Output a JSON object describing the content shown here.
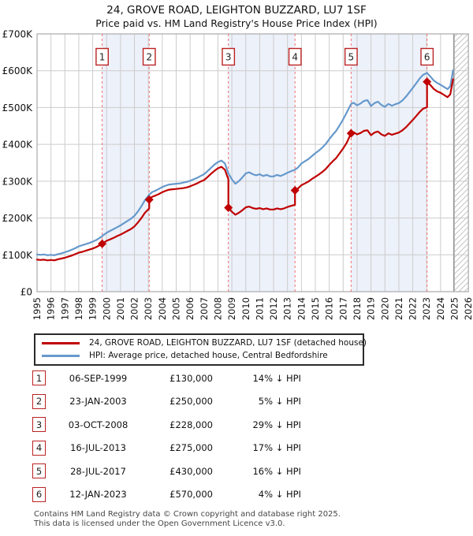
{
  "title": {
    "line1": "24, GROVE ROAD, LEIGHTON BUZZARD, LU7 1SF",
    "line2": "Price paid vs. HM Land Registry's House Price Index (HPI)"
  },
  "colors": {
    "price_line": "#c00000",
    "hpi_line": "#6699cc",
    "event_dash": "#f07070",
    "band_fill": "#edf1fa",
    "grid": "#cccccc",
    "plot_border": "#aaaaaa",
    "hatch_line": "#c4c4c4",
    "hatch_edge": "#999999",
    "event_box_border": "#bb2222",
    "marker_fill": "#c00000",
    "text": "#111111"
  },
  "chart_data": {
    "type": "line",
    "title": "24, GROVE ROAD, LEIGHTON BUZZARD, LU7 1SF",
    "subtitle": "Price paid vs. HM Land Registry's House Price Index (HPI)",
    "ylabel": "",
    "xlabel": "",
    "values_unit": "GBP thousands",
    "x_axis": {
      "min": 1995,
      "max": 2026,
      "ticks": [
        1995,
        1996,
        1997,
        1998,
        1999,
        2000,
        2001,
        2002,
        2003,
        2004,
        2005,
        2006,
        2007,
        2008,
        2009,
        2010,
        2011,
        2012,
        2013,
        2014,
        2015,
        2016,
        2017,
        2018,
        2019,
        2020,
        2021,
        2022,
        2023,
        2024,
        2025,
        2026
      ]
    },
    "y_axis": {
      "min": 0,
      "max": 700,
      "ticks": [
        {
          "v": 0,
          "label": "£0"
        },
        {
          "v": 100,
          "label": "£100K"
        },
        {
          "v": 200,
          "label": "£200K"
        },
        {
          "v": 300,
          "label": "£300K"
        },
        {
          "v": 400,
          "label": "£400K"
        },
        {
          "v": 500,
          "label": "£500K"
        },
        {
          "v": 600,
          "label": "£600K"
        },
        {
          "v": 700,
          "label": "£700K"
        }
      ]
    },
    "grid": true,
    "future_hatch_start": 2024.95,
    "ownership_bands": [
      [
        1999.68,
        2003.06
      ],
      [
        2008.75,
        2013.54
      ],
      [
        2017.57,
        2023.03
      ]
    ],
    "events": [
      {
        "n": "1",
        "x": 1999.68,
        "price_k": 130
      },
      {
        "n": "2",
        "x": 2003.06,
        "price_k": 250
      },
      {
        "n": "3",
        "x": 2008.75,
        "price_k": 228
      },
      {
        "n": "4",
        "x": 2013.54,
        "price_k": 275
      },
      {
        "n": "5",
        "x": 2017.57,
        "price_k": 430
      },
      {
        "n": "6",
        "x": 2023.03,
        "price_k": 570
      }
    ],
    "series": [
      {
        "name": "HPI: Average price, detached house, Central Bedfordshire",
        "color_key": "hpi_line",
        "points": [
          [
            1995.0,
            101
          ],
          [
            1995.25,
            100
          ],
          [
            1995.5,
            101
          ],
          [
            1995.75,
            99
          ],
          [
            1996.0,
            100
          ],
          [
            1996.25,
            99
          ],
          [
            1996.5,
            102
          ],
          [
            1996.75,
            104
          ],
          [
            1997.0,
            107
          ],
          [
            1997.25,
            110
          ],
          [
            1997.5,
            114
          ],
          [
            1997.75,
            118
          ],
          [
            1998.0,
            123
          ],
          [
            1998.25,
            126
          ],
          [
            1998.5,
            129
          ],
          [
            1998.75,
            132
          ],
          [
            1999.0,
            136
          ],
          [
            1999.25,
            140
          ],
          [
            1999.5,
            146
          ],
          [
            1999.68,
            151
          ],
          [
            1999.75,
            153
          ],
          [
            2000.0,
            160
          ],
          [
            2000.25,
            165
          ],
          [
            2000.5,
            170
          ],
          [
            2000.75,
            175
          ],
          [
            2001.0,
            180
          ],
          [
            2001.25,
            186
          ],
          [
            2001.5,
            192
          ],
          [
            2001.75,
            198
          ],
          [
            2002.0,
            206
          ],
          [
            2002.25,
            218
          ],
          [
            2002.5,
            232
          ],
          [
            2002.75,
            248
          ],
          [
            2003.06,
            263
          ],
          [
            2003.25,
            270
          ],
          [
            2003.5,
            274
          ],
          [
            2003.75,
            279
          ],
          [
            2004.0,
            284
          ],
          [
            2004.25,
            288
          ],
          [
            2004.5,
            291
          ],
          [
            2004.75,
            292
          ],
          [
            2005.0,
            293
          ],
          [
            2005.25,
            294
          ],
          [
            2005.5,
            296
          ],
          [
            2005.75,
            298
          ],
          [
            2006.0,
            301
          ],
          [
            2006.25,
            305
          ],
          [
            2006.5,
            309
          ],
          [
            2006.75,
            314
          ],
          [
            2007.0,
            319
          ],
          [
            2007.25,
            327
          ],
          [
            2007.5,
            336
          ],
          [
            2007.75,
            345
          ],
          [
            2008.0,
            352
          ],
          [
            2008.25,
            356
          ],
          [
            2008.5,
            348
          ],
          [
            2008.75,
            321
          ],
          [
            2009.0,
            305
          ],
          [
            2009.25,
            293
          ],
          [
            2009.5,
            300
          ],
          [
            2009.75,
            310
          ],
          [
            2010.0,
            321
          ],
          [
            2010.25,
            324
          ],
          [
            2010.5,
            319
          ],
          [
            2010.75,
            316
          ],
          [
            2011.0,
            319
          ],
          [
            2011.25,
            314
          ],
          [
            2011.5,
            317
          ],
          [
            2011.75,
            313
          ],
          [
            2012.0,
            313
          ],
          [
            2012.25,
            317
          ],
          [
            2012.5,
            314
          ],
          [
            2012.75,
            318
          ],
          [
            2013.0,
            323
          ],
          [
            2013.25,
            327
          ],
          [
            2013.54,
            331
          ],
          [
            2013.75,
            337
          ],
          [
            2014.0,
            348
          ],
          [
            2014.25,
            354
          ],
          [
            2014.5,
            360
          ],
          [
            2014.75,
            368
          ],
          [
            2015.0,
            376
          ],
          [
            2015.25,
            383
          ],
          [
            2015.5,
            391
          ],
          [
            2015.75,
            401
          ],
          [
            2016.0,
            414
          ],
          [
            2016.25,
            426
          ],
          [
            2016.5,
            437
          ],
          [
            2016.75,
            452
          ],
          [
            2017.0,
            468
          ],
          [
            2017.25,
            486
          ],
          [
            2017.57,
            510
          ],
          [
            2017.75,
            513
          ],
          [
            2018.0,
            506
          ],
          [
            2018.25,
            511
          ],
          [
            2018.5,
            518
          ],
          [
            2018.75,
            520
          ],
          [
            2019.0,
            504
          ],
          [
            2019.25,
            512
          ],
          [
            2019.5,
            516
          ],
          [
            2019.75,
            507
          ],
          [
            2020.0,
            502
          ],
          [
            2020.25,
            510
          ],
          [
            2020.5,
            505
          ],
          [
            2020.75,
            509
          ],
          [
            2021.0,
            512
          ],
          [
            2021.25,
            519
          ],
          [
            2021.5,
            529
          ],
          [
            2021.75,
            541
          ],
          [
            2022.0,
            553
          ],
          [
            2022.25,
            566
          ],
          [
            2022.5,
            579
          ],
          [
            2022.75,
            589
          ],
          [
            2023.03,
            594
          ],
          [
            2023.25,
            585
          ],
          [
            2023.5,
            574
          ],
          [
            2023.75,
            567
          ],
          [
            2024.0,
            562
          ],
          [
            2024.25,
            556
          ],
          [
            2024.5,
            550
          ],
          [
            2024.7,
            558
          ],
          [
            2024.9,
            601
          ]
        ]
      },
      {
        "name": "24, GROVE ROAD, LEIGHTON BUZZARD, LU7 1SF (detached house)",
        "color_key": "price_line",
        "points": [
          [
            1995.0,
            87
          ],
          [
            1995.25,
            86
          ],
          [
            1995.5,
            87
          ],
          [
            1995.75,
            85
          ],
          [
            1996.0,
            86
          ],
          [
            1996.25,
            85
          ],
          [
            1996.5,
            88
          ],
          [
            1996.75,
            90
          ],
          [
            1997.0,
            92
          ],
          [
            1997.25,
            95
          ],
          [
            1997.5,
            98
          ],
          [
            1997.75,
            102
          ],
          [
            1998.0,
            106
          ],
          [
            1998.25,
            108
          ],
          [
            1998.5,
            111
          ],
          [
            1998.75,
            114
          ],
          [
            1999.0,
            117
          ],
          [
            1999.25,
            121
          ],
          [
            1999.5,
            126
          ],
          [
            1999.68,
            130
          ],
          [
            1999.75,
            132
          ],
          [
            2000.0,
            138
          ],
          [
            2000.25,
            142
          ],
          [
            2000.5,
            146
          ],
          [
            2000.75,
            151
          ],
          [
            2001.0,
            155
          ],
          [
            2001.25,
            160
          ],
          [
            2001.5,
            165
          ],
          [
            2001.75,
            170
          ],
          [
            2002.0,
            177
          ],
          [
            2002.25,
            188
          ],
          [
            2002.5,
            200
          ],
          [
            2002.75,
            214
          ],
          [
            2003.06,
            226
          ],
          [
            2003.06,
            250
          ],
          [
            2003.25,
            257
          ],
          [
            2003.5,
            261
          ],
          [
            2003.75,
            265
          ],
          [
            2004.0,
            270
          ],
          [
            2004.25,
            274
          ],
          [
            2004.5,
            277
          ],
          [
            2004.75,
            278
          ],
          [
            2005.0,
            279
          ],
          [
            2005.25,
            280
          ],
          [
            2005.5,
            281
          ],
          [
            2005.75,
            283
          ],
          [
            2006.0,
            286
          ],
          [
            2006.25,
            290
          ],
          [
            2006.5,
            294
          ],
          [
            2006.75,
            299
          ],
          [
            2007.0,
            303
          ],
          [
            2007.25,
            311
          ],
          [
            2007.5,
            320
          ],
          [
            2007.75,
            328
          ],
          [
            2008.0,
            335
          ],
          [
            2008.25,
            339
          ],
          [
            2008.5,
            331
          ],
          [
            2008.75,
            305
          ],
          [
            2008.75,
            228
          ],
          [
            2009.0,
            217
          ],
          [
            2009.25,
            209
          ],
          [
            2009.5,
            214
          ],
          [
            2009.75,
            221
          ],
          [
            2010.0,
            229
          ],
          [
            2010.25,
            231
          ],
          [
            2010.5,
            227
          ],
          [
            2010.75,
            225
          ],
          [
            2011.0,
            227
          ],
          [
            2011.25,
            224
          ],
          [
            2011.5,
            226
          ],
          [
            2011.75,
            223
          ],
          [
            2012.0,
            223
          ],
          [
            2012.25,
            226
          ],
          [
            2012.5,
            224
          ],
          [
            2012.75,
            226
          ],
          [
            2013.0,
            230
          ],
          [
            2013.25,
            233
          ],
          [
            2013.54,
            236
          ],
          [
            2013.54,
            275
          ],
          [
            2013.75,
            280
          ],
          [
            2014.0,
            289
          ],
          [
            2014.25,
            294
          ],
          [
            2014.5,
            299
          ],
          [
            2014.75,
            306
          ],
          [
            2015.0,
            312
          ],
          [
            2015.25,
            318
          ],
          [
            2015.5,
            325
          ],
          [
            2015.75,
            333
          ],
          [
            2016.0,
            344
          ],
          [
            2016.25,
            354
          ],
          [
            2016.5,
            363
          ],
          [
            2016.75,
            376
          ],
          [
            2017.0,
            389
          ],
          [
            2017.25,
            404
          ],
          [
            2017.57,
            430
          ],
          [
            2017.75,
            433
          ],
          [
            2018.0,
            427
          ],
          [
            2018.25,
            431
          ],
          [
            2018.5,
            437
          ],
          [
            2018.75,
            438
          ],
          [
            2019.0,
            425
          ],
          [
            2019.25,
            432
          ],
          [
            2019.5,
            435
          ],
          [
            2019.75,
            427
          ],
          [
            2020.0,
            423
          ],
          [
            2020.25,
            430
          ],
          [
            2020.5,
            426
          ],
          [
            2020.75,
            429
          ],
          [
            2021.0,
            432
          ],
          [
            2021.25,
            438
          ],
          [
            2021.5,
            446
          ],
          [
            2021.75,
            456
          ],
          [
            2022.0,
            466
          ],
          [
            2022.25,
            477
          ],
          [
            2022.5,
            488
          ],
          [
            2022.75,
            497
          ],
          [
            2023.03,
            501
          ],
          [
            2023.03,
            570
          ],
          [
            2023.25,
            562
          ],
          [
            2023.5,
            551
          ],
          [
            2023.75,
            544
          ],
          [
            2024.0,
            540
          ],
          [
            2024.25,
            534
          ],
          [
            2024.5,
            528
          ],
          [
            2024.7,
            536
          ],
          [
            2024.9,
            577
          ]
        ]
      }
    ],
    "legend_position": "below"
  },
  "legend": {
    "items": [
      {
        "label": "24, GROVE ROAD, LEIGHTON BUZZARD, LU7 1SF (detached house)",
        "color_key": "price_line"
      },
      {
        "label": "HPI: Average price, detached house, Central Bedfordshire",
        "color_key": "hpi_line"
      }
    ]
  },
  "table": {
    "rows": [
      {
        "num": "1",
        "date": "06-SEP-1999",
        "price": "£130,000",
        "pct": "14%",
        "rel": "↓",
        "ref": "HPI"
      },
      {
        "num": "2",
        "date": "23-JAN-2003",
        "price": "£250,000",
        "pct": "5%",
        "rel": "↓",
        "ref": "HPI"
      },
      {
        "num": "3",
        "date": "03-OCT-2008",
        "price": "£228,000",
        "pct": "29%",
        "rel": "↓",
        "ref": "HPI"
      },
      {
        "num": "4",
        "date": "16-JUL-2013",
        "price": "£275,000",
        "pct": "17%",
        "rel": "↓",
        "ref": "HPI"
      },
      {
        "num": "5",
        "date": "28-JUL-2017",
        "price": "£430,000",
        "pct": "16%",
        "rel": "↓",
        "ref": "HPI"
      },
      {
        "num": "6",
        "date": "12-JAN-2023",
        "price": "£570,000",
        "pct": "4%",
        "rel": "↓",
        "ref": "HPI"
      }
    ]
  },
  "footer": {
    "line1": "Contains HM Land Registry data © Crown copyright and database right 2025.",
    "line2": "This data is licensed under the Open Government Licence v3.0."
  }
}
